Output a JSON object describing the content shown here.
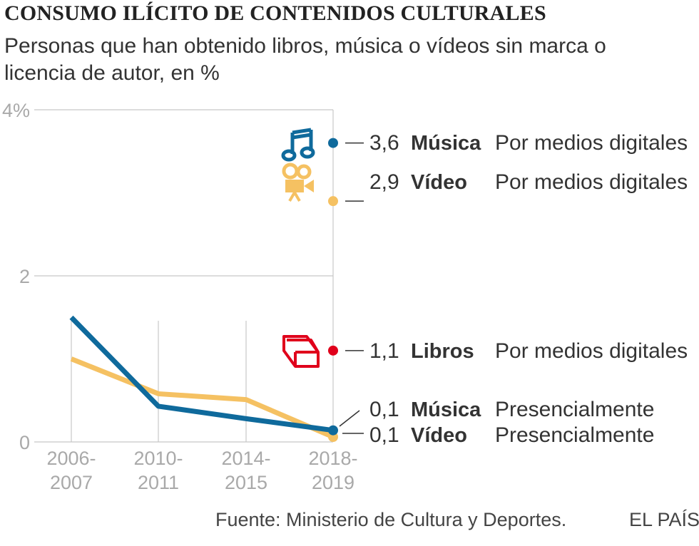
{
  "header": {
    "title": "CONSUMO ILÍCITO DE CONTENIDOS CULTURALES",
    "subtitle": "Personas que han obtenido libros, música o vídeos sin marca o licencia de autor, en %"
  },
  "footer": {
    "source": "Fuente: Ministerio de Cultura y Deportes.",
    "brand": "EL PAÍS"
  },
  "chart_data": {
    "type": "line",
    "title": "CONSUMO ILÍCITO DE CONTENIDOS CULTURALES",
    "subtitle": "Personas que han obtenido libros, música o vídeos sin marca o licencia de autor, en %",
    "categories": [
      "2006-2007",
      "2010-2011",
      "2014-2015",
      "2018-2019"
    ],
    "y_ticks": [
      "0",
      "2",
      "4%"
    ],
    "ylim": [
      0,
      4
    ],
    "grid": true,
    "series": [
      {
        "name": "Música",
        "color": "#0f6a9c",
        "values": [
          1.5,
          0.43,
          0.28,
          0.14
        ]
      },
      {
        "name": "Vídeo",
        "color": "#f5c162",
        "values": [
          1.0,
          0.58,
          0.51,
          0.06
        ]
      }
    ],
    "annotations": [
      {
        "value": 3.6,
        "value_label": "3,6",
        "category": "Música",
        "mode": "Por medios digitales",
        "color": "#0f6a9c",
        "icon": "music-note-icon"
      },
      {
        "value": 2.9,
        "value_label": "2,9",
        "category": "Vídeo",
        "mode": "Por medios digitales",
        "color": "#f5c162",
        "icon": "film-camera-icon"
      },
      {
        "value": 1.1,
        "value_label": "1,1",
        "category": "Libros",
        "mode": "Por medios digitales",
        "color": "#e0001b",
        "icon": "book-icon"
      },
      {
        "value": 0.1,
        "value_label": "0,1",
        "category": "Música",
        "mode": "Presencialmente",
        "color": "#0f6a9c",
        "icon": ""
      },
      {
        "value": 0.1,
        "value_label": "0,1",
        "category": "Vídeo",
        "mode": "Presencialmente",
        "color": "#f5c162",
        "icon": ""
      }
    ]
  }
}
